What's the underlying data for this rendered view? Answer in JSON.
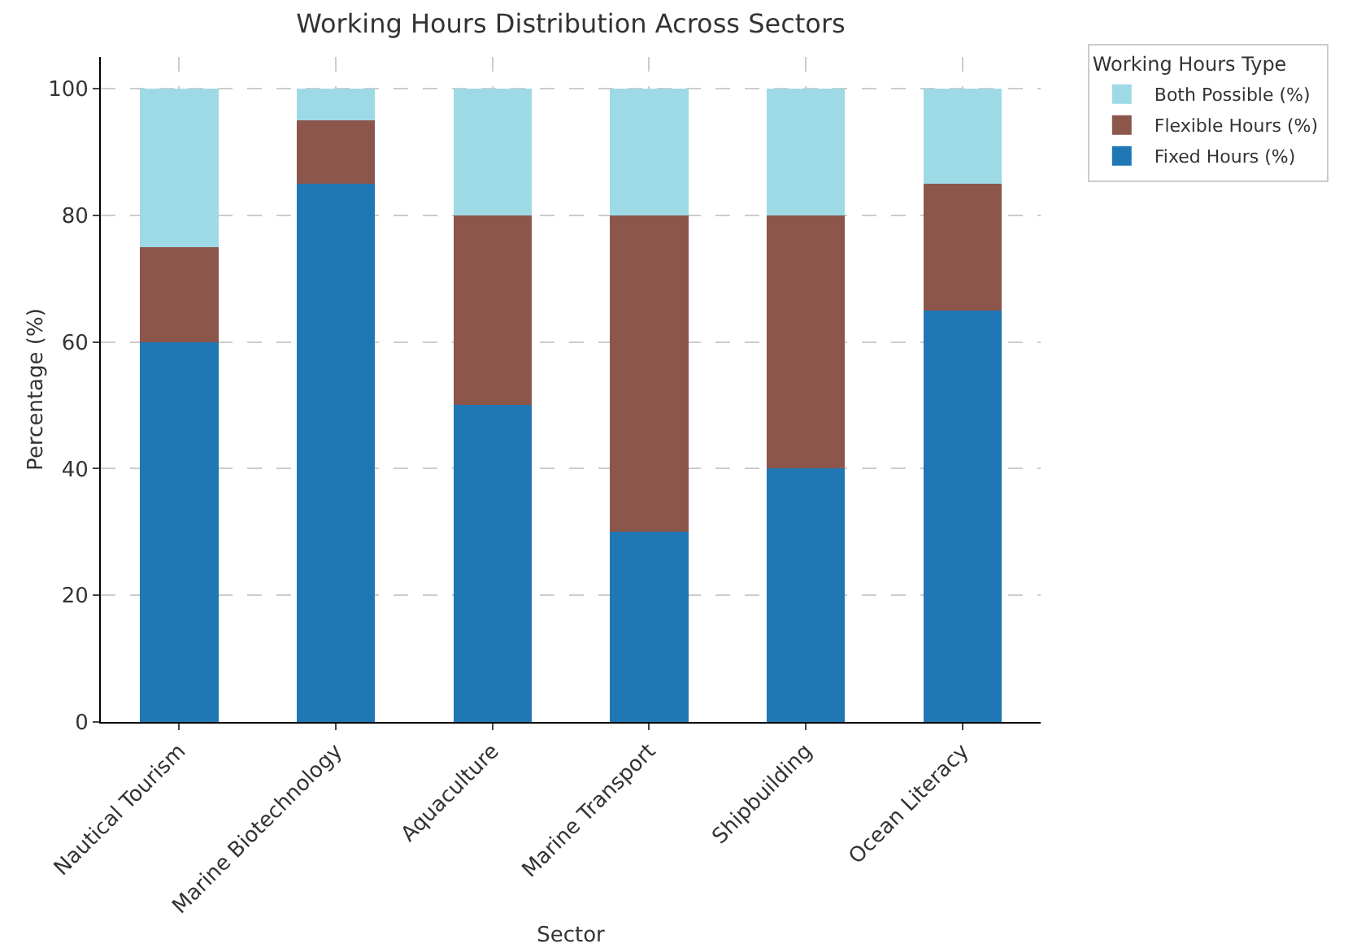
{
  "chart_data": {
    "type": "bar",
    "title": "Working Hours Distribution Across Sectors",
    "xlabel": "Sector",
    "ylabel": "Percentage (%)",
    "legend_title": "Working Hours Type",
    "categories": [
      "Nautical Tourism",
      "Marine Biotechnology",
      "Aquaculture",
      "Marine Transport",
      "Shipbuilding",
      "Ocean Literacy"
    ],
    "series": [
      {
        "name": "Fixed Hours (%)",
        "color": "#1f77b4",
        "values": [
          60,
          85,
          50,
          30,
          40,
          65
        ]
      },
      {
        "name": "Flexible Hours (%)",
        "color": "#8c564b",
        "values": [
          15,
          10,
          30,
          50,
          40,
          20
        ]
      },
      {
        "name": "Both Possible (%)",
        "color": "#9edae5",
        "values": [
          25,
          5,
          20,
          20,
          20,
          15
        ]
      }
    ],
    "stacked": true,
    "ylim": [
      0,
      105
    ],
    "yticks": [
      0,
      20,
      40,
      60,
      80,
      100
    ],
    "grid": true,
    "legend": "top right"
  }
}
